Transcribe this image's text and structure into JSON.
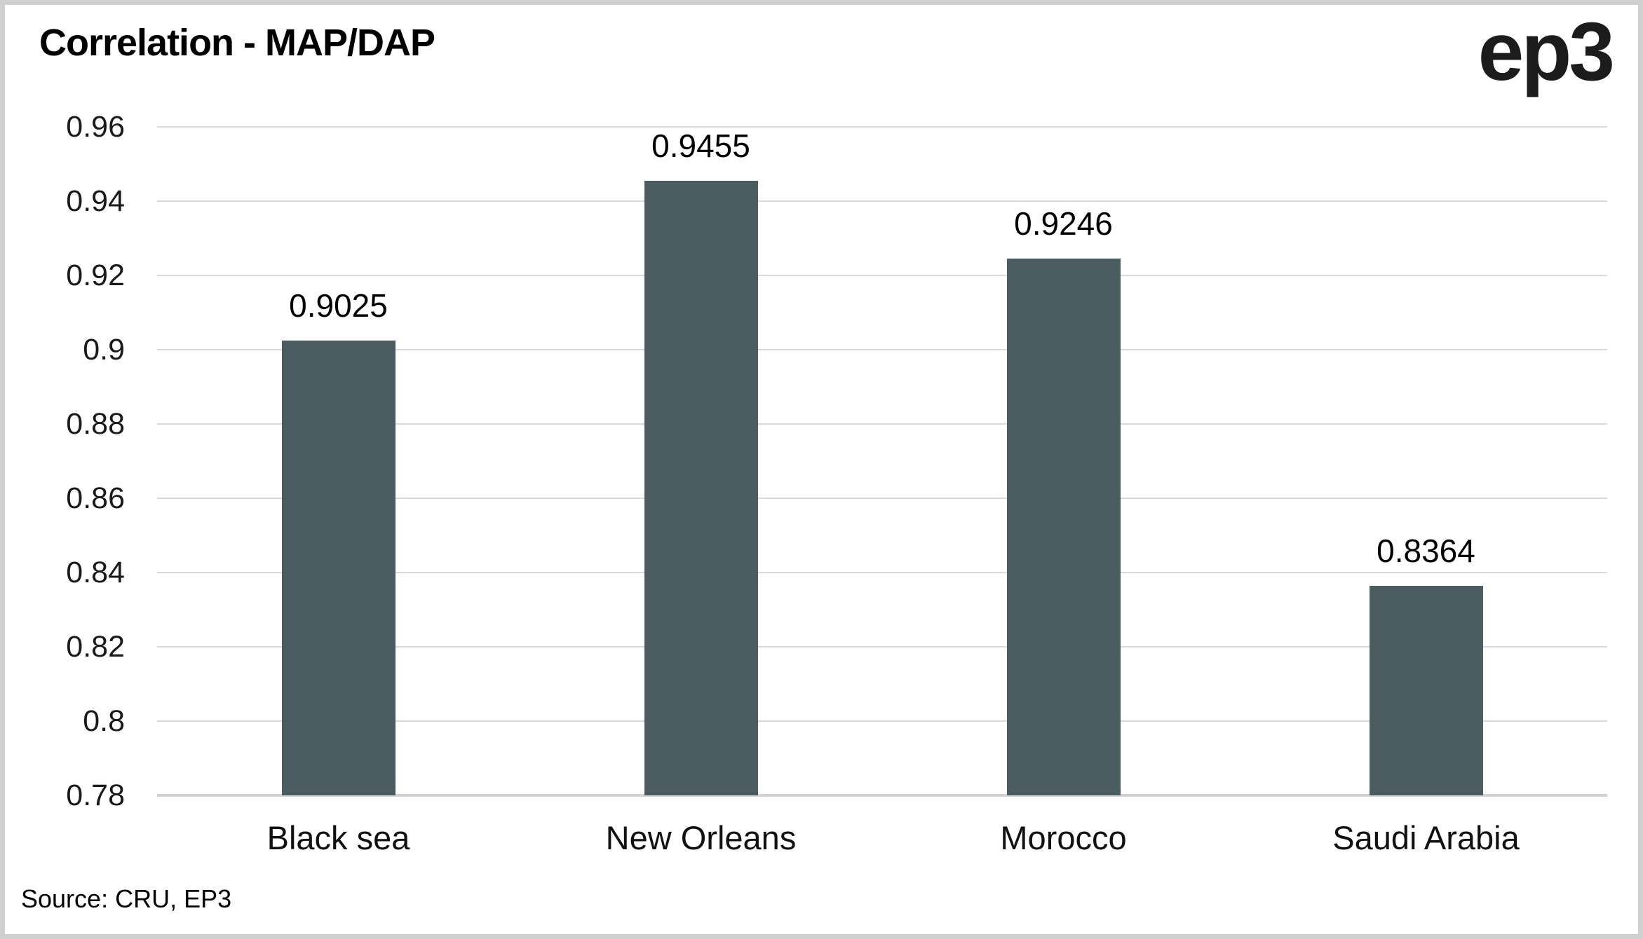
{
  "header": {
    "title": "Correlation - MAP/DAP",
    "logo": "ep3"
  },
  "footer": {
    "source": "Source: CRU, EP3"
  },
  "chart_data": {
    "type": "bar",
    "title": "Correlation - MAP/DAP",
    "categories": [
      "Black sea",
      "New Orleans",
      "Morocco",
      "Saudi Arabia"
    ],
    "values": [
      0.9025,
      0.9455,
      0.9246,
      0.8364
    ],
    "data_labels": [
      "0.9025",
      "0.9455",
      "0.9246",
      "0.8364"
    ],
    "y_ticks": [
      0.96,
      0.94,
      0.92,
      0.9,
      0.88,
      0.86,
      0.84,
      0.82,
      0.8,
      0.78
    ],
    "y_tick_labels": [
      "0.96",
      "0.94",
      "0.92",
      "0.9",
      "0.88",
      "0.86",
      "0.84",
      "0.82",
      "0.8",
      "0.78"
    ],
    "ylim": [
      0.78,
      0.96
    ],
    "xlabel": "",
    "ylabel": "",
    "grid": true,
    "legend": "none",
    "bar_color": "#4b5c60",
    "gridline_color": "#dadada",
    "axis_line_color": "#d2d2d2",
    "source": "Source: CRU, EP3"
  }
}
